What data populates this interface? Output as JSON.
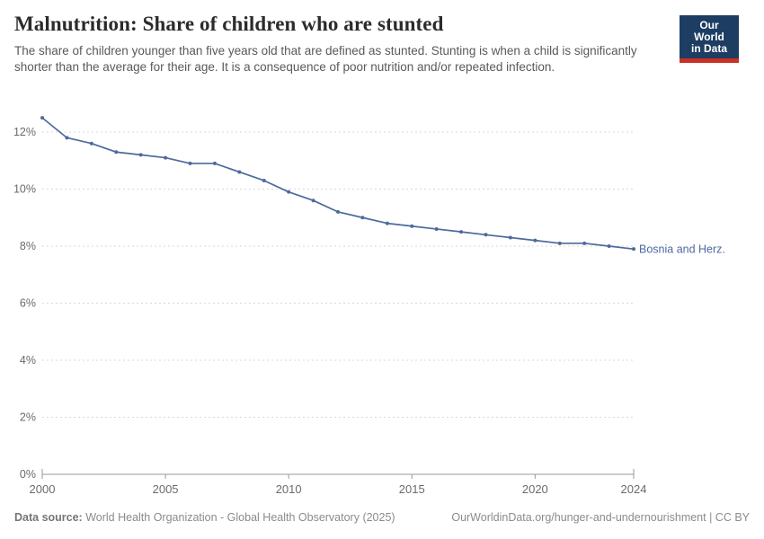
{
  "header": {
    "title": "Malnutrition: Share of children who are stunted",
    "subtitle": "The share of children younger than five years old that are defined as stunted. Stunting is when a child is significantly shorter than the average for their age. It is a consequence of poor nutrition and/or repeated infection.",
    "logo": {
      "line1": "Our World",
      "line2": "in Data",
      "bg_color": "#1d3d63",
      "accent_color": "#cb3025"
    }
  },
  "chart_data": {
    "type": "line",
    "title": "Malnutrition: Share of children who are stunted",
    "x": [
      2000,
      2001,
      2002,
      2003,
      2004,
      2005,
      2006,
      2007,
      2008,
      2009,
      2010,
      2011,
      2012,
      2013,
      2014,
      2015,
      2016,
      2017,
      2018,
      2019,
      2020,
      2021,
      2022,
      2023,
      2024
    ],
    "series": [
      {
        "name": "Bosnia and Herz.",
        "color": "#4c6a9c",
        "values": [
          12.5,
          11.8,
          11.6,
          11.3,
          11.2,
          11.1,
          10.9,
          10.9,
          10.6,
          10.3,
          9.9,
          9.6,
          9.2,
          9.0,
          8.8,
          8.7,
          8.6,
          8.5,
          8.4,
          8.3,
          8.2,
          8.1,
          8.1,
          8.0,
          7.9
        ]
      }
    ],
    "x_ticks": [
      2000,
      2005,
      2010,
      2015,
      2020,
      2024
    ],
    "y_ticks": [
      0,
      2,
      4,
      6,
      8,
      10,
      12
    ],
    "y_tick_suffix": "%",
    "ylim": [
      0,
      12.6
    ],
    "xlim": [
      2000,
      2024
    ],
    "grid": "dashed horizontal",
    "legend_position": "end-of-line label",
    "colors": {
      "grid": "#d9d9d9",
      "axis_line": "#999999",
      "tick_label": "#6b6b6b"
    }
  },
  "footer": {
    "source_label": "Data source:",
    "source_text": " World Health Organization - Global Health Observatory (2025)",
    "link_text": "OurWorldinData.org/hunger-and-undernourishment | CC BY"
  }
}
